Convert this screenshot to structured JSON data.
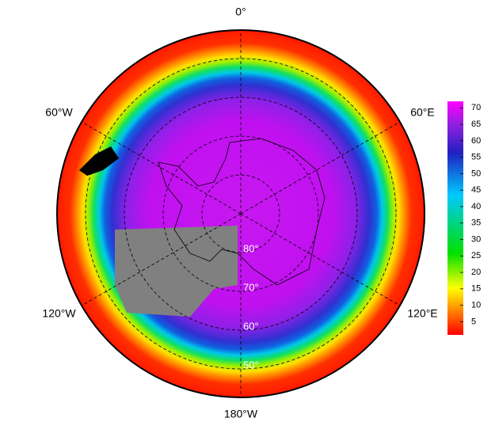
{
  "chart_data": {
    "type": "polar-map",
    "lon_ticks": [
      {
        "value": 0,
        "label": "0°"
      },
      {
        "value": -60,
        "label": "60°W"
      },
      {
        "value": 60,
        "label": "60°E"
      },
      {
        "value": -120,
        "label": "120°W"
      },
      {
        "value": 120,
        "label": "120°E"
      },
      {
        "value": -180,
        "label": "180°W"
      }
    ],
    "lat_ticks": [
      {
        "value": 80,
        "label": "80°"
      },
      {
        "value": 70,
        "label": "70°"
      },
      {
        "value": 60,
        "label": "60°"
      },
      {
        "value": 50,
        "label": "50°"
      }
    ],
    "colorbar": {
      "lim": [
        1,
        72
      ],
      "ticks": [
        5,
        10,
        15,
        20,
        25,
        30,
        35,
        40,
        45,
        50,
        55,
        60,
        65,
        70
      ]
    }
  }
}
